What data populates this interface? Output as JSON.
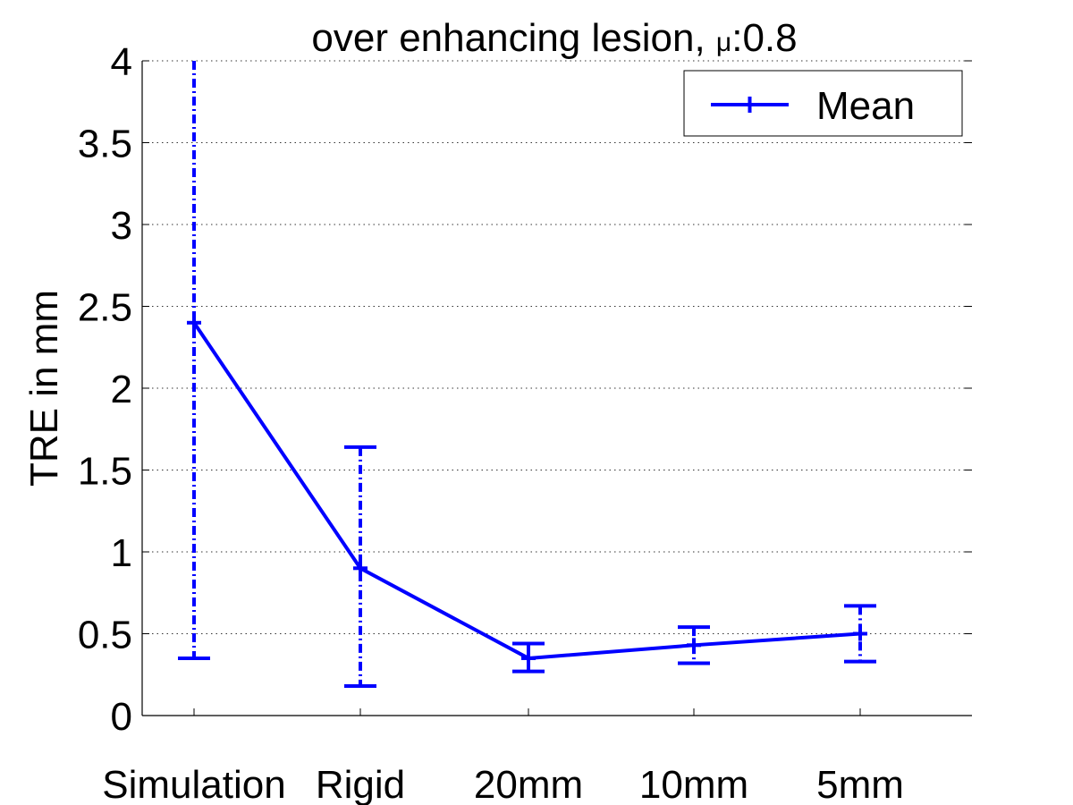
{
  "chart_data": {
    "type": "line",
    "title": "over enhancing lesion, ",
    "title_symbol": "μ",
    "title_suffix": ":0.8",
    "xlabel": "",
    "ylabel": "TRE in mm",
    "categories": [
      "Simulation",
      "Rigid",
      "20mm",
      "10mm",
      "5mm"
    ],
    "ylim": [
      0,
      4
    ],
    "yticks": [
      0,
      0.5,
      1,
      1.5,
      2,
      2.5,
      3,
      3.5,
      4
    ],
    "ytick_labels": [
      "0",
      "0.5",
      "1",
      "1.5",
      "2",
      "2.5",
      "3",
      "3.5",
      "4"
    ],
    "grid": true,
    "legend": {
      "placement": "top-right",
      "entries": [
        "Mean"
      ]
    },
    "series": [
      {
        "name": "Mean",
        "color": "#0000ff",
        "values": [
          2.4,
          0.9,
          0.35,
          0.43,
          0.5
        ],
        "error_lower": [
          0.35,
          0.18,
          0.27,
          0.32,
          0.33
        ],
        "error_upper": [
          4.0,
          1.64,
          0.44,
          0.54,
          0.67
        ]
      }
    ]
  }
}
